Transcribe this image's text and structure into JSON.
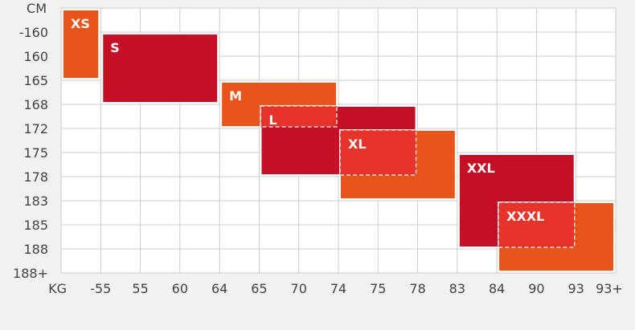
{
  "chart_data": {
    "type": "table",
    "x_axis_label": "KG",
    "y_axis_label": "CM",
    "x_ticks": [
      "-55",
      "55",
      "60",
      "64",
      "65",
      "70",
      "74",
      "75",
      "78",
      "83",
      "84",
      "90",
      "93",
      "93+"
    ],
    "y_ticks": [
      "-160",
      "160",
      "165",
      "168",
      "172",
      "175",
      "178",
      "183",
      "185",
      "188",
      "188+"
    ],
    "grid": true,
    "sizes": [
      {
        "label": "XS",
        "weight_range": [
          "",
          "-55"
        ],
        "height_range": [
          "",
          "165"
        ],
        "color": "#e8541a",
        "style": "solid"
      },
      {
        "label": "S",
        "weight_range": [
          "-55",
          "64"
        ],
        "height_range": [
          "-160",
          "168"
        ],
        "color": "#c40f26",
        "style": "solid"
      },
      {
        "label": "M",
        "weight_range": [
          "64",
          "74"
        ],
        "height_range": [
          "165",
          "172"
        ],
        "color": "#e8541a",
        "style": "solid"
      },
      {
        "label": "L",
        "weight_range": [
          "65",
          "78"
        ],
        "height_range": [
          "168",
          "178"
        ],
        "color": "#c40f26",
        "style": "solid"
      },
      {
        "label": "XL",
        "weight_range": [
          "74",
          "83"
        ],
        "height_range": [
          "172",
          "183"
        ],
        "color": "#e8541a",
        "style": "solid"
      },
      {
        "label": "XXL",
        "weight_range": [
          "83",
          "93"
        ],
        "height_range": [
          "175",
          "188"
        ],
        "color": "#c40f26",
        "style": "solid"
      },
      {
        "label": "XXXL",
        "weight_range": [
          "84",
          "93+"
        ],
        "height_range": [
          "183",
          "188+"
        ],
        "color": "#e8541a",
        "style": "solid"
      }
    ],
    "overlaps": [
      {
        "weight_range": [
          "65",
          "74"
        ],
        "height_range": [
          "168",
          "172"
        ],
        "color": "#e8332b",
        "style": "dashed"
      },
      {
        "weight_range": [
          "74",
          "78"
        ],
        "height_range": [
          "172",
          "178"
        ],
        "color": "#e8332b",
        "style": "dashed"
      },
      {
        "weight_range": [
          "84",
          "93"
        ],
        "height_range": [
          "183",
          "188"
        ],
        "color": "#e8332b",
        "style": "dashed"
      }
    ]
  }
}
